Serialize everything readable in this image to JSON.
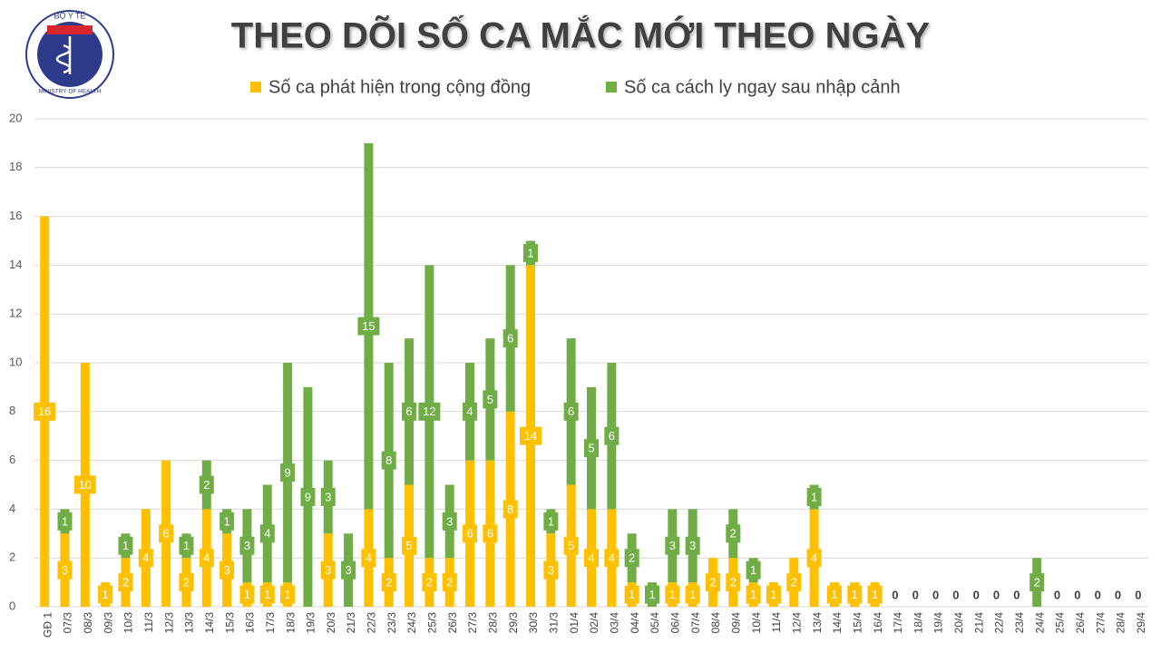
{
  "logo": {
    "top": "BỘ Y TẾ",
    "bottom": "MINISTRY OF HEALTH"
  },
  "chart_data": {
    "type": "stacked-bar",
    "title": "THEO DÕI SỐ CA MẮC MỚI THEO NGÀY",
    "categories": [
      "GĐ 1",
      "07/3",
      "08/3",
      "09/3",
      "10/3",
      "11/3",
      "12/3",
      "13/3",
      "14/3",
      "15/3",
      "16/3",
      "17/3",
      "18/3",
      "19/3",
      "20/3",
      "21/3",
      "22/3",
      "23/3",
      "24/3",
      "25/3",
      "26/3",
      "27/3",
      "28/3",
      "29/3",
      "30/3",
      "31/3",
      "01/4",
      "02/4",
      "03/4",
      "04/4",
      "05/4",
      "06/4",
      "07/4",
      "08/4",
      "09/4",
      "10/4",
      "11/4",
      "12/4",
      "13/4",
      "14/4",
      "15/4",
      "16/4",
      "17/4",
      "18/4",
      "19/4",
      "20/4",
      "21/4",
      "22/4",
      "23/4",
      "24/4",
      "25/4",
      "26/4",
      "27/4",
      "28/4",
      "29/4"
    ],
    "series": [
      {
        "name": "Số ca phát hiện trong cộng đồng",
        "color": "#FFC000",
        "values": [
          16,
          3,
          10,
          1,
          2,
          4,
          6,
          2,
          4,
          3,
          1,
          1,
          1,
          0,
          3,
          0,
          4,
          2,
          5,
          2,
          2,
          6,
          6,
          8,
          14,
          3,
          5,
          4,
          4,
          1,
          0,
          1,
          1,
          2,
          2,
          1,
          1,
          2,
          4,
          1,
          1,
          1,
          0,
          0,
          0,
          0,
          0,
          0,
          0,
          0,
          0,
          0,
          0,
          0,
          0
        ]
      },
      {
        "name": "Số ca cách ly ngay sau nhập cảnh",
        "color": "#70AD47",
        "values": [
          0,
          1,
          0,
          0,
          1,
          0,
          0,
          1,
          2,
          1,
          3,
          4,
          9,
          9,
          3,
          3,
          15,
          8,
          6,
          12,
          3,
          4,
          5,
          6,
          1,
          1,
          6,
          5,
          6,
          2,
          1,
          3,
          3,
          0,
          2,
          1,
          0,
          0,
          1,
          0,
          0,
          0,
          0,
          0,
          0,
          0,
          0,
          0,
          0,
          2,
          0,
          0,
          0,
          0,
          0
        ]
      }
    ],
    "ylim": [
      0,
      20
    ],
    "yticks": [
      0,
      2,
      4,
      6,
      8,
      10,
      12,
      14,
      16,
      18,
      20
    ],
    "grid": true
  }
}
